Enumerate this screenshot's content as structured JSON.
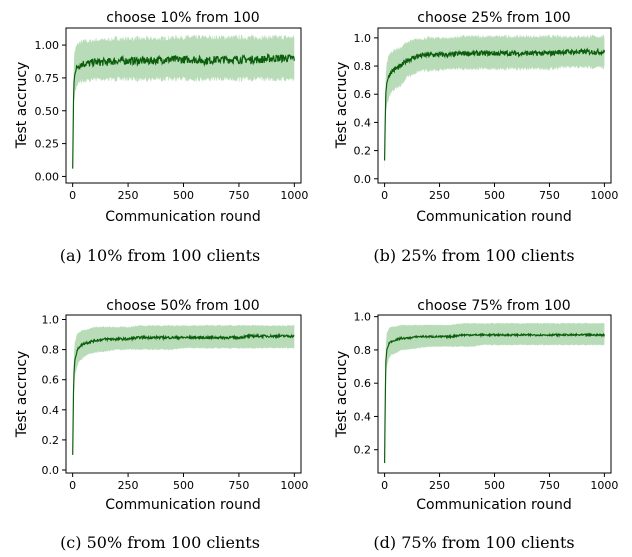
{
  "colors": {
    "band": "#3a9c3a",
    "mean": "#0b5e0b",
    "axes": "#000000"
  },
  "chart_data": [
    {
      "type": "line",
      "title": "choose 10% from 100",
      "xlabel": "Communication round",
      "ylabel": "Test accrucy",
      "caption": "(a)  10%  from  100  clients",
      "xlim": [
        -30,
        1030
      ],
      "ylim": [
        -0.05,
        1.13
      ],
      "xticks": [
        0,
        250,
        500,
        750,
        1000
      ],
      "xtick_labels": [
        "0",
        "250",
        "500",
        "750",
        "1000"
      ],
      "yticks": [
        0.0,
        0.25,
        0.5,
        0.75,
        1.0
      ],
      "ytick_labels": [
        "0.00",
        "0.25",
        "0.50",
        "0.75",
        "1.00"
      ],
      "grid": false,
      "series": [
        {
          "x": [
            0,
            5,
            10,
            20,
            30,
            50,
            75,
            100,
            150,
            200,
            250,
            300,
            350,
            400,
            450,
            500,
            550,
            600,
            650,
            700,
            750,
            800,
            850,
            900,
            950,
            1000
          ],
          "mean": [
            0.06,
            0.7,
            0.78,
            0.83,
            0.85,
            0.86,
            0.86,
            0.87,
            0.87,
            0.88,
            0.88,
            0.88,
            0.88,
            0.89,
            0.89,
            0.89,
            0.89,
            0.88,
            0.89,
            0.89,
            0.89,
            0.89,
            0.89,
            0.9,
            0.9,
            0.9
          ],
          "lower": [
            -0.01,
            0.55,
            0.64,
            0.7,
            0.72,
            0.73,
            0.73,
            0.74,
            0.74,
            0.74,
            0.74,
            0.74,
            0.74,
            0.74,
            0.74,
            0.74,
            0.74,
            0.74,
            0.74,
            0.74,
            0.74,
            0.74,
            0.74,
            0.74,
            0.74,
            0.74
          ],
          "upper": [
            0.12,
            0.88,
            0.96,
            1.0,
            1.02,
            1.03,
            1.03,
            1.04,
            1.04,
            1.05,
            1.05,
            1.05,
            1.05,
            1.05,
            1.06,
            1.06,
            1.06,
            1.06,
            1.06,
            1.06,
            1.06,
            1.06,
            1.06,
            1.06,
            1.06,
            1.06
          ],
          "noise": 0.03
        }
      ]
    },
    {
      "type": "line",
      "title": "choose 25% from 100",
      "xlabel": "Communication round",
      "ylabel": "Test accrucy",
      "caption": "(b)  25%  from  100  clients",
      "xlim": [
        -30,
        1030
      ],
      "ylim": [
        -0.03,
        1.07
      ],
      "xticks": [
        0,
        250,
        500,
        750,
        1000
      ],
      "xtick_labels": [
        "0",
        "250",
        "500",
        "750",
        "1000"
      ],
      "yticks": [
        0.0,
        0.2,
        0.4,
        0.6,
        0.8,
        1.0
      ],
      "ytick_labels": [
        "0.0",
        "0.2",
        "0.4",
        "0.6",
        "0.8",
        "1.0"
      ],
      "grid": false,
      "series": [
        {
          "x": [
            0,
            5,
            10,
            20,
            30,
            50,
            75,
            100,
            150,
            200,
            250,
            300,
            350,
            400,
            450,
            500,
            550,
            600,
            650,
            700,
            750,
            800,
            850,
            900,
            950,
            1000
          ],
          "mean": [
            0.13,
            0.6,
            0.68,
            0.73,
            0.76,
            0.78,
            0.8,
            0.84,
            0.87,
            0.88,
            0.88,
            0.88,
            0.89,
            0.89,
            0.89,
            0.89,
            0.89,
            0.89,
            0.89,
            0.89,
            0.89,
            0.9,
            0.9,
            0.9,
            0.9,
            0.9
          ],
          "lower": [
            0.05,
            0.45,
            0.52,
            0.58,
            0.61,
            0.64,
            0.66,
            0.72,
            0.76,
            0.77,
            0.77,
            0.78,
            0.78,
            0.78,
            0.78,
            0.78,
            0.78,
            0.78,
            0.78,
            0.78,
            0.78,
            0.79,
            0.79,
            0.79,
            0.79,
            0.79
          ],
          "upper": [
            0.2,
            0.75,
            0.82,
            0.88,
            0.9,
            0.92,
            0.93,
            0.97,
            0.99,
            1.0,
            1.0,
            1.0,
            1.01,
            1.01,
            1.01,
            1.01,
            1.01,
            1.01,
            1.01,
            1.01,
            1.01,
            1.01,
            1.01,
            1.01,
            1.01,
            1.01
          ],
          "noise": 0.018
        }
      ]
    },
    {
      "type": "line",
      "title": "choose 50% from 100",
      "xlabel": "Communication round",
      "ylabel": "Test accrucy",
      "caption": "(c)  50%  from  100  clients",
      "xlim": [
        -30,
        1030
      ],
      "ylim": [
        -0.02,
        1.03
      ],
      "xticks": [
        0,
        250,
        500,
        750,
        1000
      ],
      "xtick_labels": [
        "0",
        "250",
        "500",
        "750",
        "1000"
      ],
      "yticks": [
        0.0,
        0.2,
        0.4,
        0.6,
        0.8,
        1.0
      ],
      "ytick_labels": [
        "0.0",
        "0.2",
        "0.4",
        "0.6",
        "0.8",
        "1.0"
      ],
      "grid": false,
      "series": [
        {
          "x": [
            0,
            5,
            10,
            20,
            30,
            50,
            75,
            100,
            150,
            200,
            250,
            300,
            350,
            400,
            450,
            500,
            550,
            600,
            650,
            700,
            750,
            800,
            850,
            900,
            950,
            1000
          ],
          "mean": [
            0.1,
            0.62,
            0.73,
            0.79,
            0.82,
            0.84,
            0.85,
            0.86,
            0.87,
            0.87,
            0.87,
            0.88,
            0.88,
            0.88,
            0.88,
            0.88,
            0.88,
            0.88,
            0.88,
            0.88,
            0.88,
            0.89,
            0.89,
            0.89,
            0.89,
            0.89
          ],
          "lower": [
            0.05,
            0.5,
            0.62,
            0.69,
            0.72,
            0.75,
            0.77,
            0.78,
            0.79,
            0.8,
            0.8,
            0.8,
            0.8,
            0.8,
            0.8,
            0.81,
            0.81,
            0.81,
            0.81,
            0.81,
            0.81,
            0.81,
            0.81,
            0.81,
            0.81,
            0.81
          ],
          "upper": [
            0.14,
            0.76,
            0.85,
            0.9,
            0.92,
            0.93,
            0.94,
            0.95,
            0.95,
            0.95,
            0.95,
            0.96,
            0.96,
            0.96,
            0.96,
            0.96,
            0.96,
            0.96,
            0.96,
            0.96,
            0.96,
            0.96,
            0.96,
            0.96,
            0.96,
            0.96
          ],
          "noise": 0.008
        }
      ]
    },
    {
      "type": "line",
      "title": "choose 75% from 100",
      "xlabel": "Communication round",
      "ylabel": "Test accrucy",
      "caption": "(d)  75%  from  100  clients",
      "xlim": [
        -30,
        1030
      ],
      "ylim": [
        0.06,
        1.01
      ],
      "xticks": [
        0,
        250,
        500,
        750,
        1000
      ],
      "xtick_labels": [
        "0",
        "250",
        "500",
        "750",
        "1000"
      ],
      "yticks": [
        0.2,
        0.4,
        0.6,
        0.8,
        1.0
      ],
      "ytick_labels": [
        "0.2",
        "0.4",
        "0.6",
        "0.8",
        "1.0"
      ],
      "grid": false,
      "series": [
        {
          "x": [
            0,
            5,
            10,
            20,
            30,
            50,
            75,
            100,
            150,
            200,
            250,
            300,
            350,
            400,
            450,
            500,
            550,
            600,
            650,
            700,
            750,
            800,
            850,
            900,
            950,
            1000
          ],
          "mean": [
            0.12,
            0.72,
            0.8,
            0.84,
            0.85,
            0.86,
            0.87,
            0.87,
            0.88,
            0.88,
            0.88,
            0.88,
            0.89,
            0.89,
            0.89,
            0.89,
            0.89,
            0.89,
            0.89,
            0.89,
            0.89,
            0.89,
            0.89,
            0.89,
            0.89,
            0.89
          ],
          "lower": [
            0.08,
            0.62,
            0.7,
            0.75,
            0.77,
            0.78,
            0.8,
            0.8,
            0.81,
            0.82,
            0.82,
            0.82,
            0.82,
            0.82,
            0.83,
            0.83,
            0.83,
            0.83,
            0.83,
            0.83,
            0.83,
            0.83,
            0.83,
            0.83,
            0.83,
            0.83
          ],
          "upper": [
            0.16,
            0.82,
            0.9,
            0.93,
            0.94,
            0.94,
            0.95,
            0.95,
            0.95,
            0.95,
            0.95,
            0.95,
            0.96,
            0.96,
            0.96,
            0.96,
            0.96,
            0.96,
            0.96,
            0.96,
            0.96,
            0.96,
            0.96,
            0.96,
            0.96,
            0.96
          ],
          "noise": 0.005
        }
      ]
    }
  ]
}
